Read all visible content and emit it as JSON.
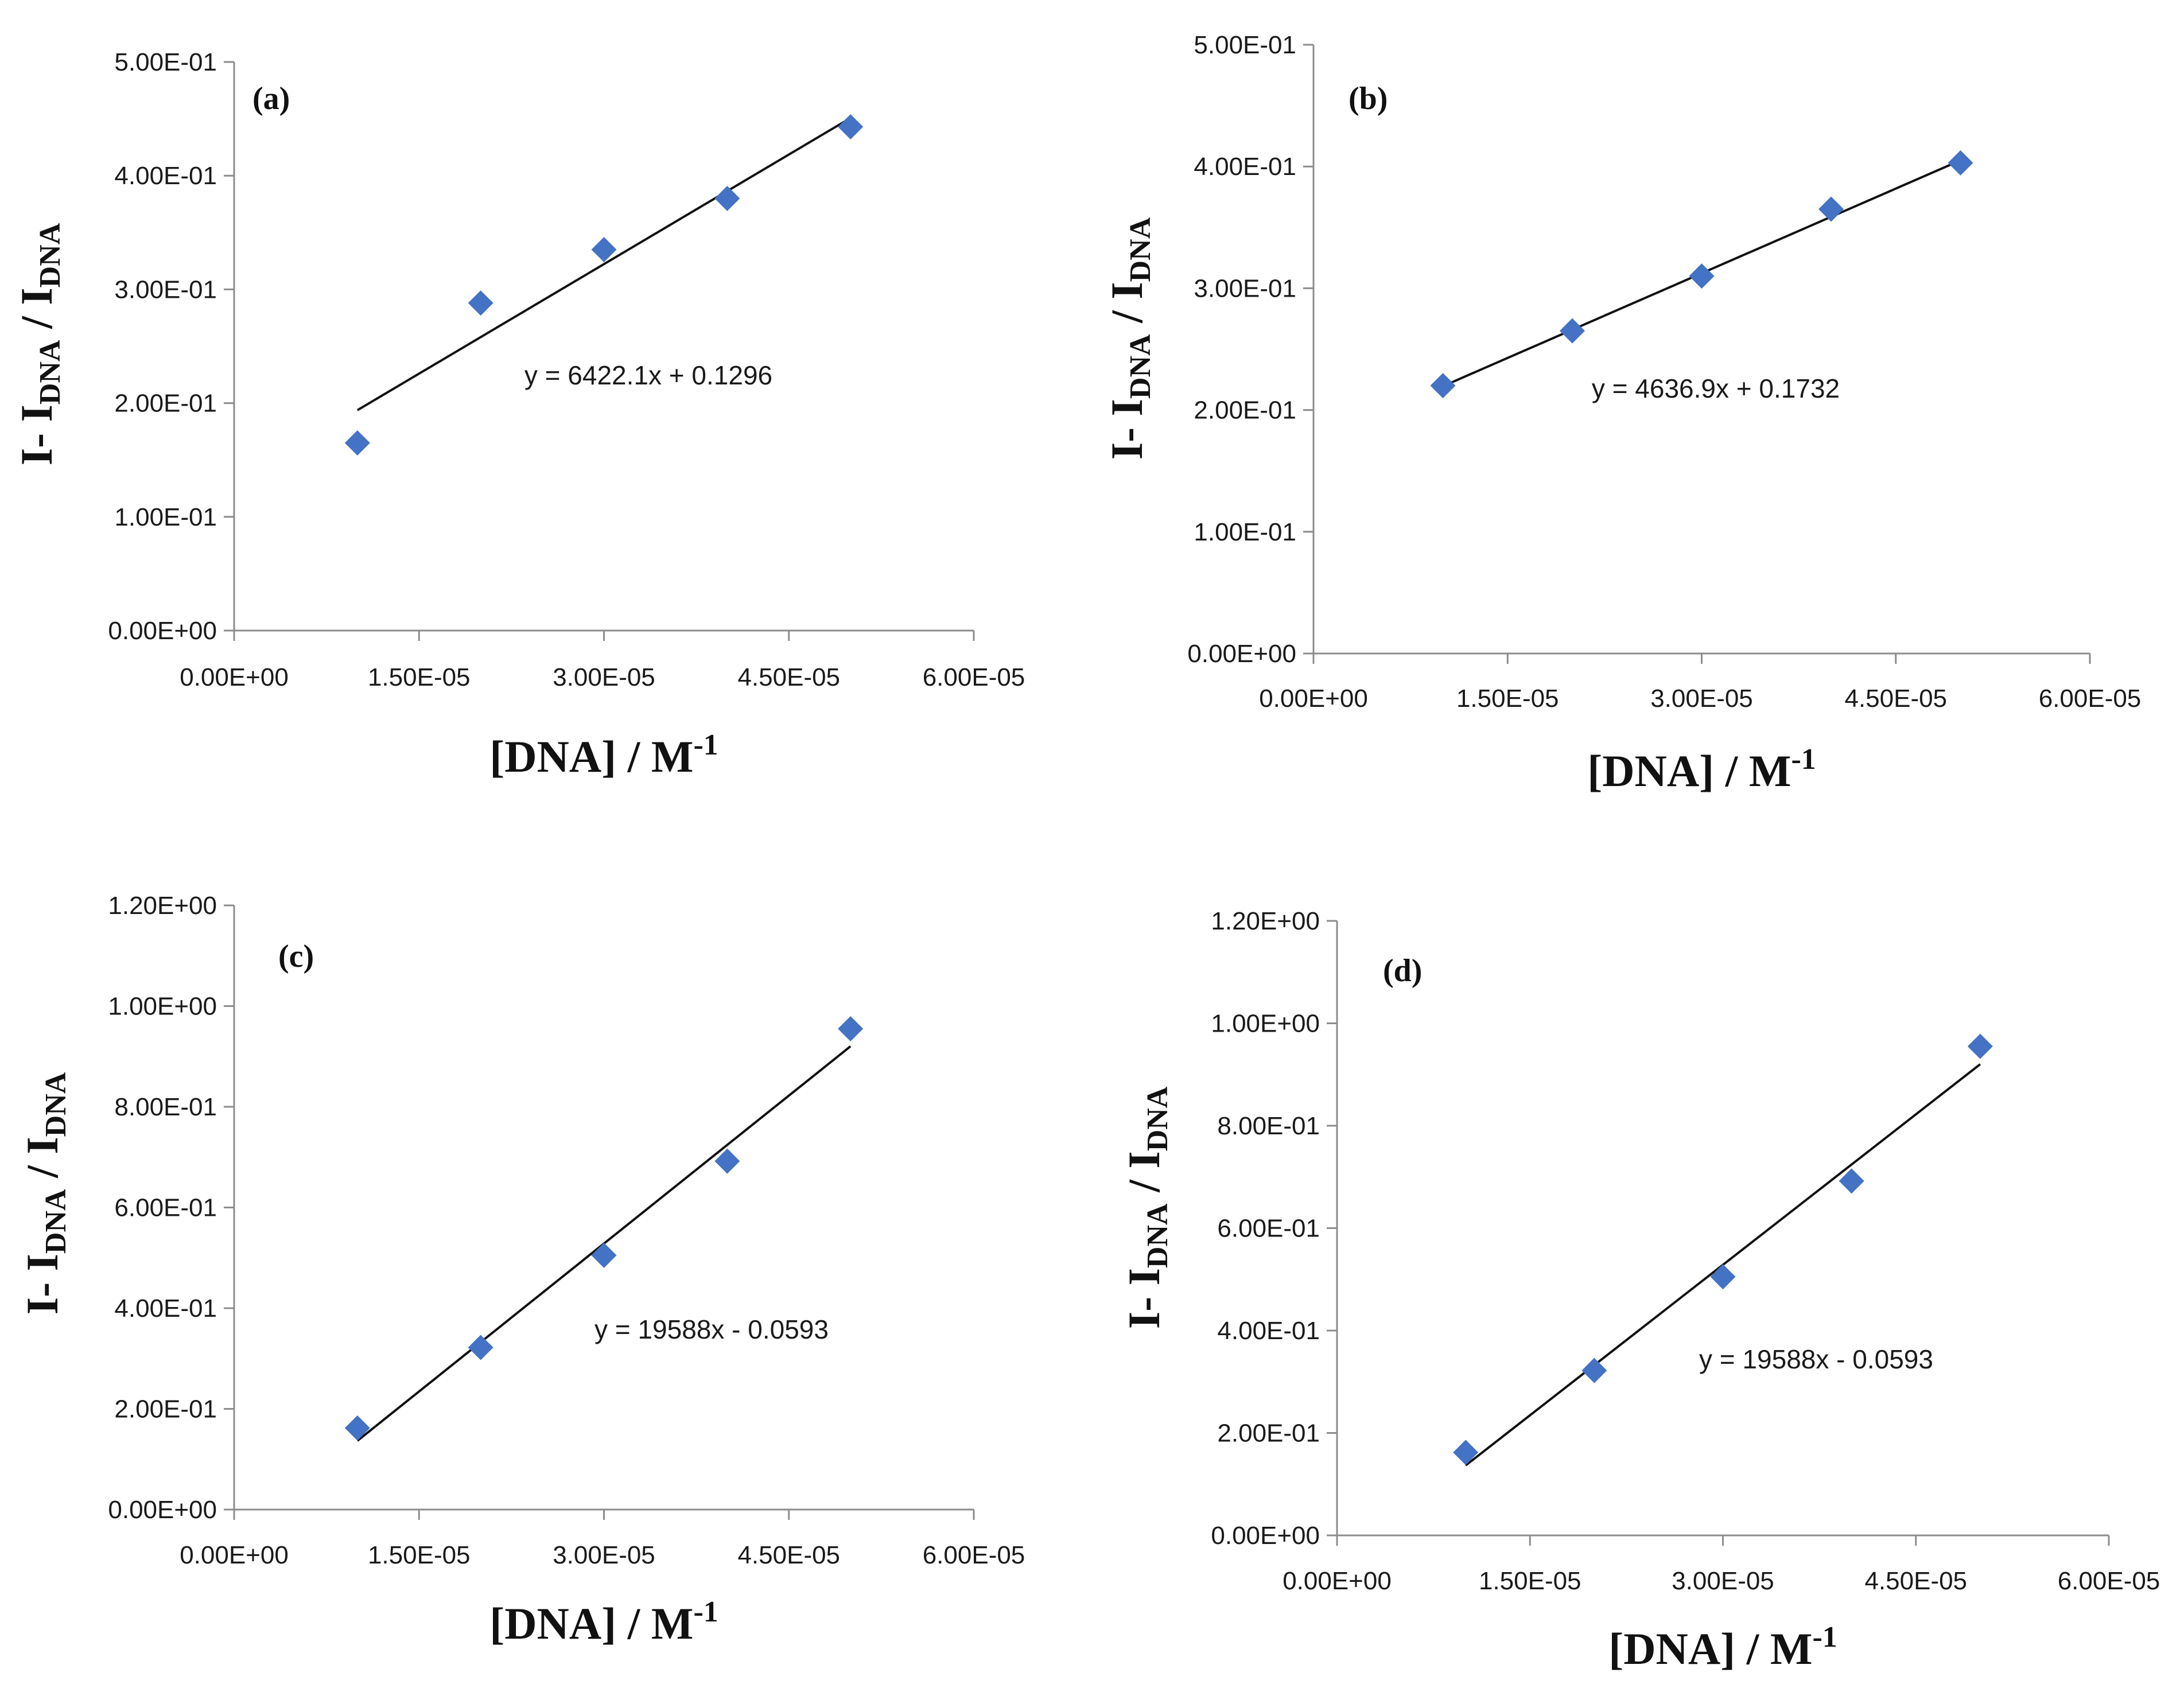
{
  "chart_data": [
    {
      "type": "scatter",
      "panel_label": "(a)",
      "x": [
        1e-05,
        2e-05,
        3e-05,
        4e-05,
        5e-05
      ],
      "y": [
        0.165,
        0.288,
        0.335,
        0.38,
        0.443
      ],
      "trendline": {
        "slope": 6422.1,
        "intercept": 0.1296,
        "equation": "y = 6422.1x + 0.1296"
      },
      "xlim": [
        0,
        6e-05
      ],
      "ylim": [
        0,
        0.5
      ],
      "xticks": [
        0,
        1.5e-05,
        3e-05,
        4.5e-05,
        6e-05
      ],
      "xtick_labels": [
        "0.00E+00",
        "1.50E-05",
        "3.00E-05",
        "4.50E-05",
        "6.00E-05"
      ],
      "yticks": [
        0,
        0.1,
        0.2,
        0.3,
        0.4,
        0.5
      ],
      "ytick_labels": [
        "0.00E+00",
        "1.00E-01",
        "2.00E-01",
        "3.00E-01",
        "4.00E-01",
        "5.00E-01"
      ],
      "xlabel": {
        "main": "[DNA] / M",
        "sup": "-1"
      },
      "ylabel": {
        "p1": "I- I",
        "s1": "DNA",
        "p2": " / I",
        "s2": "DNA"
      },
      "legend": "none",
      "grid": false
    },
    {
      "type": "scatter",
      "panel_label": "(b)",
      "x": [
        1e-05,
        2e-05,
        3e-05,
        4e-05,
        5e-05
      ],
      "y": [
        0.22,
        0.265,
        0.31,
        0.365,
        0.403
      ],
      "trendline": {
        "slope": 4636.9,
        "intercept": 0.1732,
        "equation": "y = 4636.9x + 0.1732"
      },
      "xlim": [
        0,
        6e-05
      ],
      "ylim": [
        0,
        0.5
      ],
      "xticks": [
        0,
        1.5e-05,
        3e-05,
        4.5e-05,
        6e-05
      ],
      "xtick_labels": [
        "0.00E+00",
        "1.50E-05",
        "3.00E-05",
        "4.50E-05",
        "6.00E-05"
      ],
      "yticks": [
        0,
        0.1,
        0.2,
        0.3,
        0.4,
        0.5
      ],
      "ytick_labels": [
        "0.00E+00",
        "1.00E-01",
        "2.00E-01",
        "3.00E-01",
        "4.00E-01",
        "5.00E-01"
      ],
      "xlabel": {
        "main": "[DNA] / M",
        "sup": "-1"
      },
      "ylabel": {
        "p1": "I- I",
        "s1": "DNA",
        "p2": " / I",
        "s2": "DNA"
      },
      "legend": "none",
      "grid": false
    },
    {
      "type": "scatter",
      "panel_label": "(c)",
      "x": [
        1e-05,
        2e-05,
        3e-05,
        4e-05,
        5e-05
      ],
      "y": [
        0.162,
        0.322,
        0.505,
        0.692,
        0.955
      ],
      "trendline": {
        "slope": 19588,
        "intercept": -0.0593,
        "equation": "y = 19588x - 0.0593"
      },
      "xlim": [
        0,
        6e-05
      ],
      "ylim": [
        0,
        1.2
      ],
      "xticks": [
        0,
        1.5e-05,
        3e-05,
        4.5e-05,
        6e-05
      ],
      "xtick_labels": [
        "0.00E+00",
        "1.50E-05",
        "3.00E-05",
        "4.50E-05",
        "6.00E-05"
      ],
      "yticks": [
        0,
        0.2,
        0.4,
        0.6,
        0.8,
        1.0,
        1.2
      ],
      "ytick_labels": [
        "0.00E+00",
        "2.00E-01",
        "4.00E-01",
        "6.00E-01",
        "8.00E-01",
        "1.00E+00",
        "1.20E+00"
      ],
      "xlabel": {
        "main": "[DNA] / M",
        "sup": "-1"
      },
      "ylabel": {
        "p1": "I- I",
        "s1": "DNA",
        "p2": " / I",
        "s2": "DNA"
      },
      "legend": "none",
      "grid": false
    },
    {
      "type": "scatter",
      "panel_label": "(d)",
      "x": [
        1e-05,
        2e-05,
        3e-05,
        4e-05,
        5e-05
      ],
      "y": [
        0.162,
        0.322,
        0.505,
        0.692,
        0.955
      ],
      "trendline": {
        "slope": 19588,
        "intercept": -0.0593,
        "equation": "y = 19588x - 0.0593"
      },
      "xlim": [
        0,
        6e-05
      ],
      "ylim": [
        0,
        1.2
      ],
      "xticks": [
        0,
        1.5e-05,
        3e-05,
        4.5e-05,
        6e-05
      ],
      "xtick_labels": [
        "0.00E+00",
        "1.50E-05",
        "3.00E-05",
        "4.50E-05",
        "6.00E-05"
      ],
      "yticks": [
        0,
        0.2,
        0.4,
        0.6,
        0.8,
        1.0,
        1.2
      ],
      "ytick_labels": [
        "0.00E+00",
        "2.00E-01",
        "4.00E-01",
        "6.00E-01",
        "8.00E-01",
        "1.00E+00",
        "1.20E+00"
      ],
      "xlabel": {
        "main": "[DNA] / M",
        "sup": "-1"
      },
      "ylabel": {
        "p1": "I- I",
        "s1": "DNA",
        "p2": " / I",
        "s2": "DNA"
      },
      "legend": "none",
      "grid": false
    }
  ]
}
